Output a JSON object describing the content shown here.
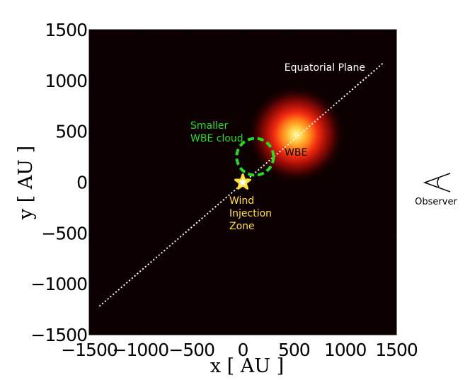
{
  "chart_data": {
    "type": "heatmap",
    "xlabel": "x [ AU ]",
    "ylabel": "y [ AU ]",
    "xlim": [
      -1500,
      1500
    ],
    "ylim": [
      -1500,
      1500
    ],
    "x_ticks": [
      "−1500",
      "−1000",
      "−500",
      "0",
      "500",
      "1000",
      "1500"
    ],
    "y_ticks": [
      "1500",
      "1000",
      "500",
      "0",
      "−500",
      "−1000",
      "−1500"
    ],
    "x_tick_values": [
      -1500,
      -1000,
      -500,
      0,
      500,
      1000,
      1500
    ],
    "y_tick_values": [
      1500,
      1000,
      500,
      0,
      -500,
      -1000,
      -1500
    ],
    "grid": false,
    "background_color": "#0d0000",
    "blob": {
      "label": "WBE",
      "center": [
        520,
        470
      ],
      "radius": 480
    },
    "equatorial_plane": {
      "label": "Equatorial Plane",
      "from": [
        -1400,
        -1220
      ],
      "to": [
        1380,
        1180
      ],
      "color": "#ffffff"
    },
    "smaller_cloud": {
      "label_lines": [
        "Smaller",
        "WBE cloud"
      ],
      "center": [
        120,
        250
      ],
      "radius": 180,
      "color": "#22dd22"
    },
    "injection_zone": {
      "label_lines": [
        "Wind",
        "Injection",
        "Zone"
      ],
      "position": [
        0,
        0
      ],
      "color": "#ffe033"
    },
    "observer": {
      "label": "Observer"
    }
  }
}
